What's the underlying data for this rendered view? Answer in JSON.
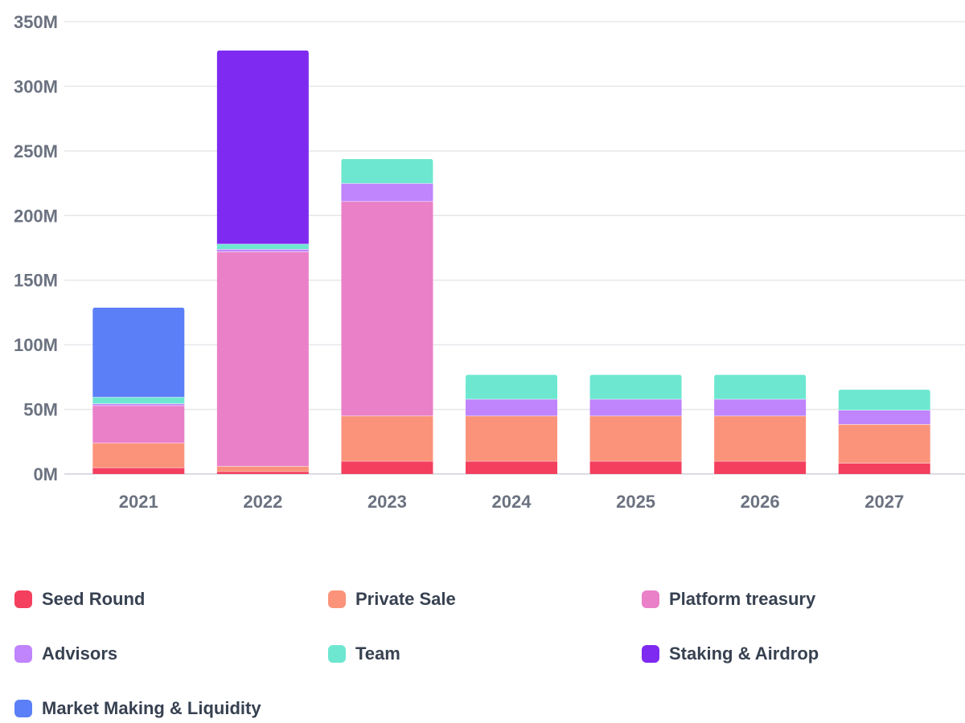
{
  "chart_data": {
    "type": "bar",
    "stacked": true,
    "categories": [
      "2021",
      "2022",
      "2023",
      "2024",
      "2025",
      "2026",
      "2027"
    ],
    "ylim": [
      0,
      350
    ],
    "yticks": [
      0,
      50,
      100,
      150,
      200,
      250,
      300,
      350
    ],
    "ytick_labels": [
      "0M",
      "50M",
      "100M",
      "150M",
      "200M",
      "250M",
      "300M",
      "350M"
    ],
    "grid": true,
    "legend_position": "bottom",
    "series": [
      {
        "name": "Seed Round",
        "color": "#f43f5e",
        "values": [
          5,
          2,
          10,
          10,
          10,
          10,
          8.5
        ]
      },
      {
        "name": "Private Sale",
        "color": "#fb937a",
        "values": [
          19,
          4,
          35,
          35,
          35,
          35,
          30
        ]
      },
      {
        "name": "Platform treasury",
        "color": "#ea80c8",
        "values": [
          29,
          166,
          166,
          0,
          0,
          0,
          0
        ]
      },
      {
        "name": "Advisors",
        "color": "#c084fc",
        "values": [
          1.5,
          2,
          14,
          13,
          13,
          13,
          11
        ]
      },
      {
        "name": "Team",
        "color": "#6ee7d0",
        "values": [
          5,
          4,
          19,
          19,
          19,
          19,
          16
        ]
      },
      {
        "name": "Staking & Airdrop",
        "color": "#7e2af0",
        "values": [
          0,
          150,
          0,
          0,
          0,
          0,
          0
        ]
      },
      {
        "name": "Market Making & Liquidity",
        "color": "#5b7ff7",
        "values": [
          69.5,
          0,
          0,
          0,
          0,
          0,
          0
        ]
      }
    ]
  }
}
